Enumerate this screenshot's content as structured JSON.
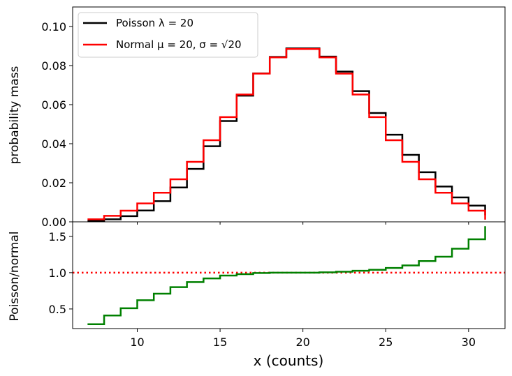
{
  "chart_data": [
    {
      "type": "line",
      "subtype": "step",
      "panel": "top",
      "ylabel": "probability mass",
      "xlim": [
        6.1,
        32.2
      ],
      "ylim": [
        0,
        0.11
      ],
      "yticks": [
        0.0,
        0.02,
        0.04,
        0.06,
        0.08,
        0.1
      ],
      "ytick_labels": [
        "0.00",
        "0.02",
        "0.04",
        "0.06",
        "0.08",
        "0.10"
      ],
      "legend_position": "top-left",
      "x": [
        7,
        8,
        9,
        10,
        11,
        12,
        13,
        14,
        15,
        16,
        17,
        18,
        19,
        20,
        21,
        22,
        23,
        24,
        25,
        26,
        27,
        28,
        29,
        30,
        31
      ],
      "series": [
        {
          "name": "Poisson λ = 20",
          "color": "#000000",
          "values": [
            0.0005,
            0.0013,
            0.0029,
            0.0058,
            0.0106,
            0.0176,
            0.0271,
            0.0387,
            0.0516,
            0.0646,
            0.076,
            0.0844,
            0.0888,
            0.0888,
            0.0846,
            0.0769,
            0.0669,
            0.0557,
            0.0446,
            0.0343,
            0.0254,
            0.0181,
            0.0125,
            0.0083,
            0.0054
          ]
        },
        {
          "name": "Normal μ = 20, σ = √20",
          "color": "#ff0000",
          "values": [
            0.0013,
            0.0031,
            0.0057,
            0.0094,
            0.0149,
            0.0218,
            0.0307,
            0.0418,
            0.0536,
            0.0652,
            0.0759,
            0.0842,
            0.0885,
            0.0885,
            0.0842,
            0.0759,
            0.0652,
            0.0536,
            0.0418,
            0.0307,
            0.0218,
            0.0149,
            0.0094,
            0.0057,
            0.0031
          ]
        }
      ]
    },
    {
      "type": "line",
      "subtype": "step",
      "panel": "bottom",
      "xlabel": "x (counts)",
      "ylabel": "Poisson/normal",
      "xlim": [
        6.1,
        32.2
      ],
      "ylim": [
        0.23,
        1.7
      ],
      "xticks": [
        10,
        15,
        20,
        25,
        30
      ],
      "xtick_labels": [
        "10",
        "15",
        "20",
        "25",
        "30"
      ],
      "yticks": [
        0.5,
        1.0,
        1.5
      ],
      "ytick_labels": [
        "0.5",
        "1.0",
        "1.5"
      ],
      "reference_line": {
        "y": 1.0,
        "style": "dotted",
        "color": "#ff0000"
      },
      "x": [
        7,
        8,
        9,
        10,
        11,
        12,
        13,
        14,
        15,
        16,
        17,
        18,
        19,
        20,
        21,
        22,
        23,
        24,
        25,
        26,
        27,
        28,
        29,
        30,
        31
      ],
      "series": [
        {
          "color": "#008000",
          "values": [
            0.29,
            0.41,
            0.51,
            0.62,
            0.71,
            0.8,
            0.87,
            0.92,
            0.96,
            0.98,
            0.995,
            1.0,
            1.0,
            1.0,
            1.005,
            1.013,
            1.026,
            1.04,
            1.065,
            1.1,
            1.16,
            1.22,
            1.33,
            1.46,
            1.64
          ]
        }
      ]
    }
  ]
}
